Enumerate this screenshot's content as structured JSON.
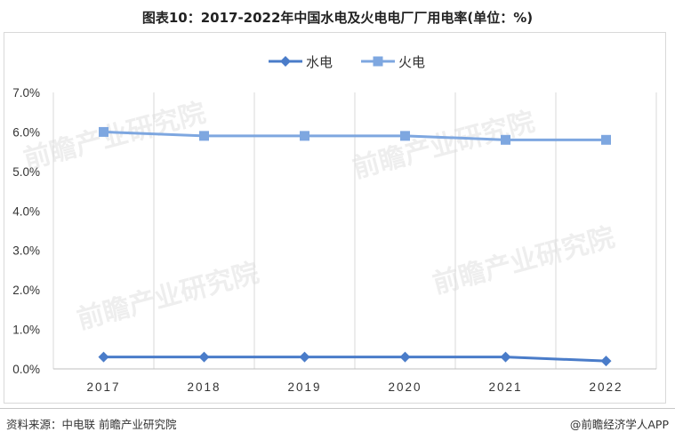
{
  "title": "图表10：2017-2022年中国水电及火电电厂厂用电率(单位：%)",
  "source": "资料来源：中电联 前瞻产业研究院",
  "brand": "@前瞻经济学人APP",
  "watermark": "前瞻产业研究院",
  "chart_data": {
    "type": "line",
    "categories": [
      "2017",
      "2018",
      "2019",
      "2020",
      "2021",
      "2022"
    ],
    "series": [
      {
        "name": "水电",
        "values": [
          0.3,
          0.3,
          0.3,
          0.3,
          0.3,
          0.2
        ],
        "color": "#4a7cc9",
        "marker": "diamond"
      },
      {
        "name": "火电",
        "values": [
          6.0,
          5.9,
          5.9,
          5.9,
          5.8,
          5.8
        ],
        "color": "#7ea7e0",
        "marker": "square"
      }
    ],
    "ylim": [
      0,
      7
    ],
    "yticks": [
      "0.0%",
      "1.0%",
      "2.0%",
      "3.0%",
      "4.0%",
      "5.0%",
      "6.0%",
      "7.0%"
    ],
    "ytick_values": [
      0,
      1,
      2,
      3,
      4,
      5,
      6,
      7
    ],
    "xlabel": "",
    "ylabel": "",
    "legend_position": "top-center",
    "grid": "vertical"
  }
}
